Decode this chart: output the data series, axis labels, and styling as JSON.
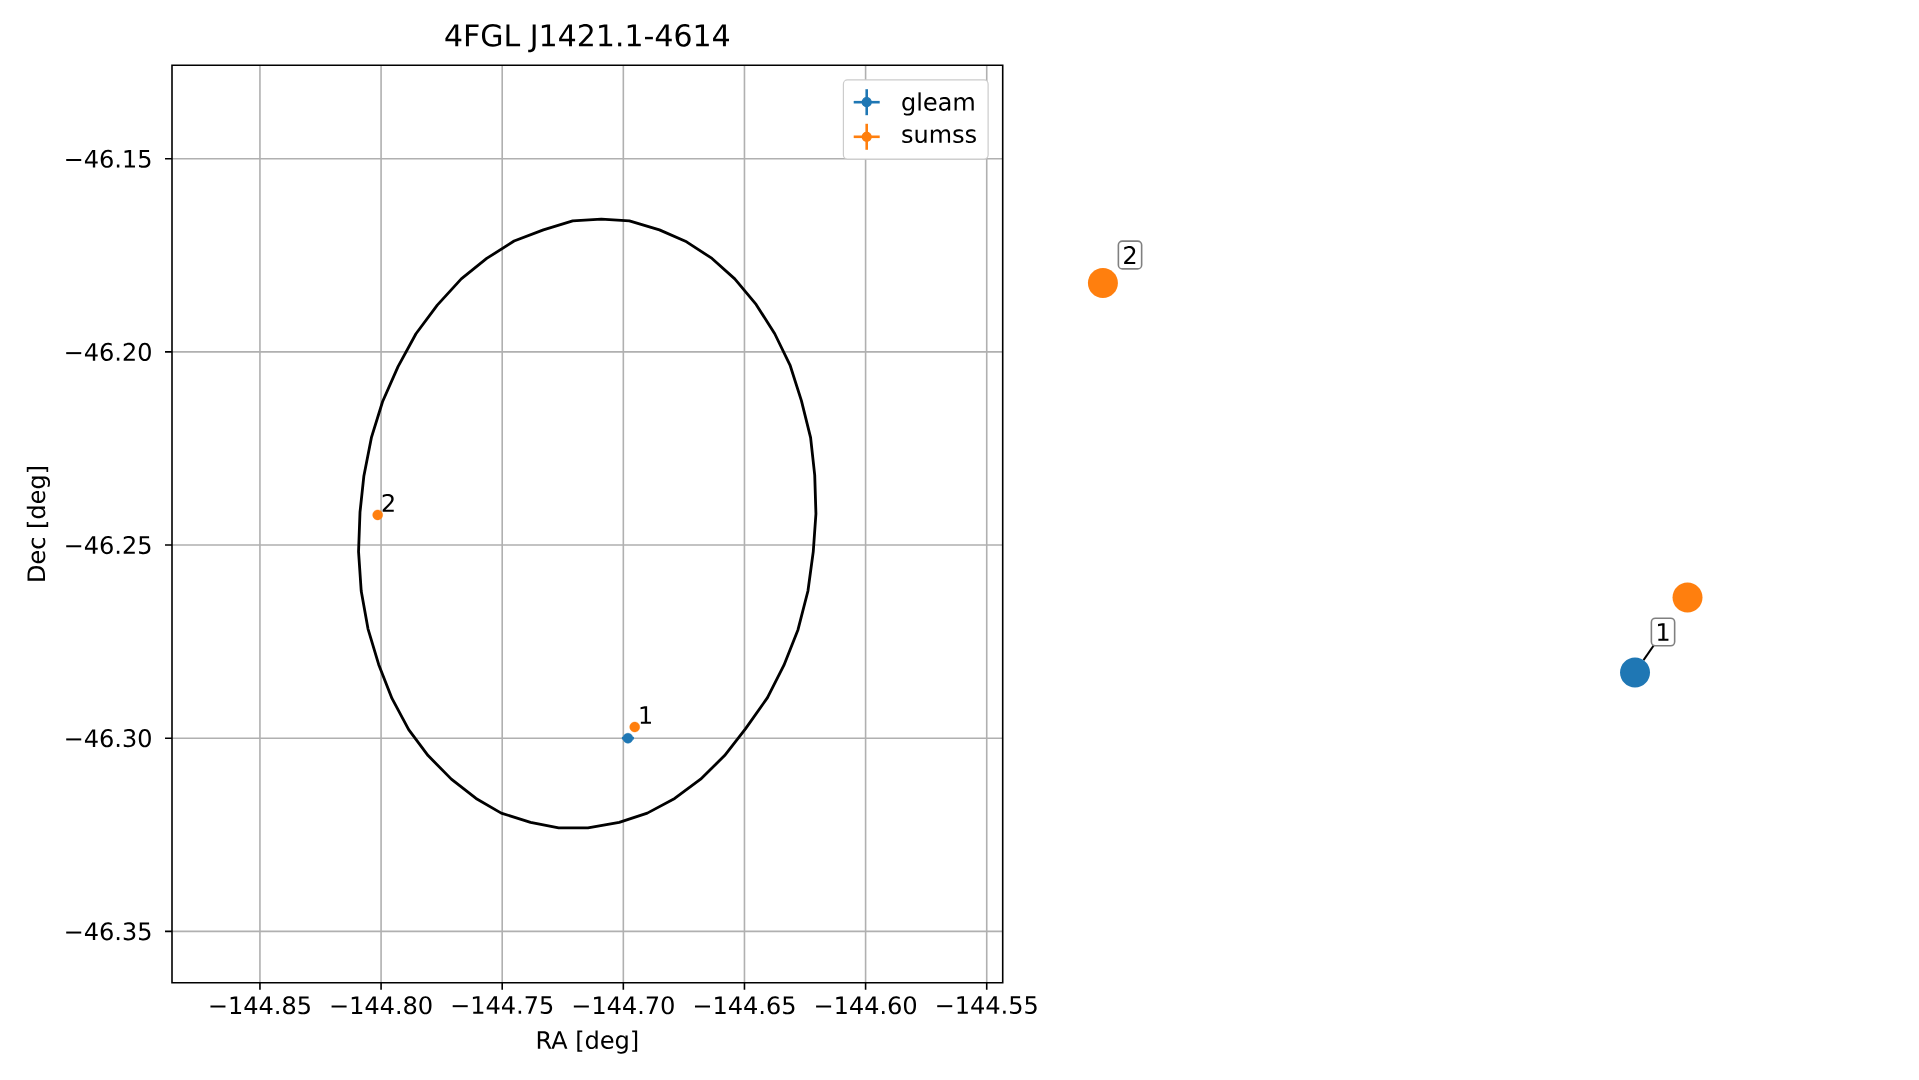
{
  "chart_data": [
    {
      "type": "scatter",
      "title": "4FGL J1421.1-4614",
      "xlabel": "RA [deg]",
      "ylabel": "Dec [deg]",
      "marker": "circle",
      "grid": true,
      "legend": "top right",
      "series": [
        {
          "name": "gleam",
          "color": "#1f77b4",
          "x": [
            -144.6981
          ],
          "values": [
            -46.3
          ],
          "xerrors": [
            0.0025
          ]
        },
        {
          "name": "sumss",
          "color": "#ff7f0e",
          "x": [
            -144.8014,
            -144.6953
          ],
          "values": [
            -46.2422,
            -46.2971
          ]
        }
      ],
      "xlim": [
        -144.8863,
        -144.5434
      ],
      "ylim": [
        -46.3633,
        -46.1258
      ],
      "xticks": [
        {
          "value": -144.85,
          "label": "−144.85"
        },
        {
          "value": -144.8,
          "label": "−144.80"
        },
        {
          "value": -144.75,
          "label": "−144.75"
        },
        {
          "value": -144.7,
          "label": "−144.70"
        },
        {
          "value": -144.65,
          "label": "−144.65"
        },
        {
          "value": -144.6,
          "label": "−144.60"
        },
        {
          "value": -144.55,
          "label": "−144.55"
        }
      ],
      "yticks": [
        {
          "value": -46.35,
          "label": "−46.35"
        },
        {
          "value": -46.3,
          "label": "−46.30"
        },
        {
          "value": -46.25,
          "label": "−46.25"
        },
        {
          "value": -46.2,
          "label": "−46.20"
        },
        {
          "value": -46.15,
          "label": "−46.15"
        }
      ],
      "annotations": [
        {
          "text": "2",
          "x": -144.8014,
          "y": -46.2422
        },
        {
          "text": "1",
          "x": -144.6953,
          "y": -46.2971
        }
      ]
    },
    {
      "type": "other",
      "annotations": [
        "2",
        "1"
      ]
    }
  ]
}
